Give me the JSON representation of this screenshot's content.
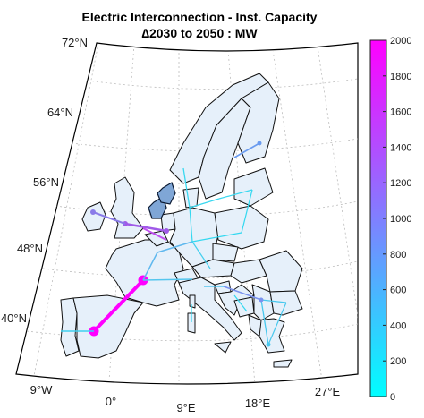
{
  "title": {
    "line1": "Electric Interconnection - Inst. Capacity",
    "line2": "∆2030 to 2050 : MW"
  },
  "lat_labels": [
    "72°N",
    "64°N",
    "56°N",
    "48°N",
    "40°N"
  ],
  "lon_labels": [
    "9°W",
    "0°",
    "9°E",
    "18°E",
    "27°E"
  ],
  "colorbar": {
    "ticks": [
      "0",
      "200",
      "400",
      "600",
      "800",
      "1000",
      "1200",
      "1400",
      "1600",
      "1800",
      "2000"
    ],
    "range": [
      0,
      2000
    ],
    "color_low": "#00ffff",
    "color_high": "#ff00ff"
  },
  "colors": {
    "land": "#e6f0fa",
    "border": "#111111",
    "grid": "#bdbdbd"
  },
  "links": [
    {
      "from": "Spain",
      "to": "France",
      "value": 2000
    },
    {
      "from": "Portugal",
      "to": "Spain",
      "value": 500
    },
    {
      "from": "UK",
      "to": "Belgium",
      "value": 1200
    },
    {
      "from": "UK",
      "to": "Ireland",
      "value": 900
    },
    {
      "from": "UK",
      "to": "Netherlands",
      "value": 1100
    },
    {
      "from": "France",
      "to": "Belgium",
      "value": 300
    },
    {
      "from": "France",
      "to": "Germany",
      "value": 400
    },
    {
      "from": "France",
      "to": "Italy",
      "value": 500
    },
    {
      "from": "Germany",
      "to": "Denmark",
      "value": 300
    },
    {
      "from": "Germany",
      "to": "Poland",
      "value": 200
    },
    {
      "from": "Germany",
      "to": "Austria",
      "value": 350
    },
    {
      "from": "Norway",
      "to": "Denmark",
      "value": 400
    },
    {
      "from": "Finland",
      "to": "Sweden",
      "value": 600
    },
    {
      "from": "Italy",
      "to": "Slovenia",
      "value": 500
    },
    {
      "from": "Slovenia",
      "to": "Serbia",
      "value": 450
    },
    {
      "from": "Serbia",
      "to": "Greece",
      "value": 500
    },
    {
      "from": "Croatia",
      "to": "Bosnia",
      "value": 300
    },
    {
      "from": "Greece",
      "to": "Bulgaria",
      "value": 400
    }
  ]
}
